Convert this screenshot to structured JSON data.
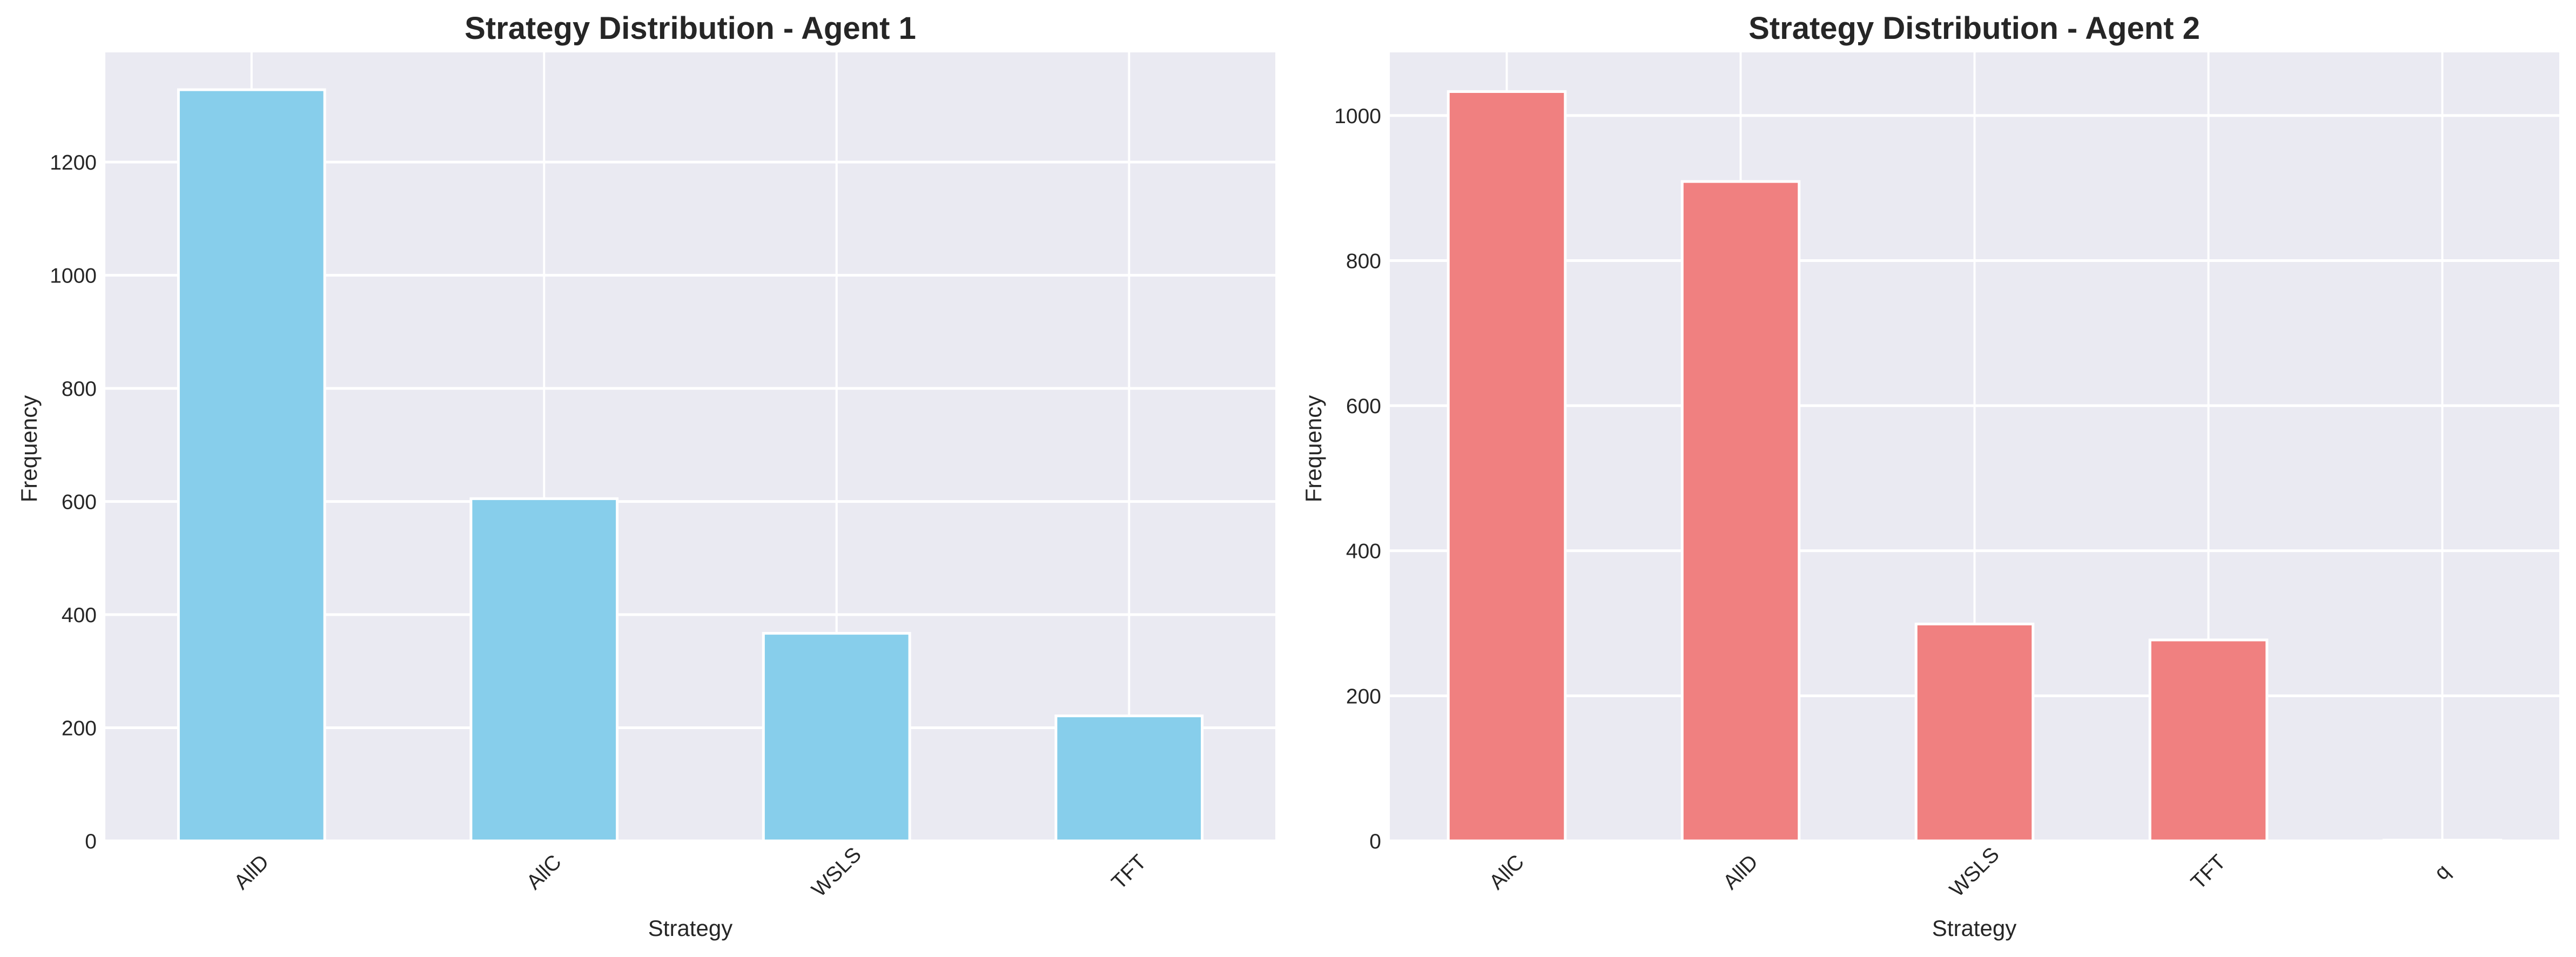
{
  "figure": {
    "background": "#ffffff",
    "axes_background": "#EAEAF2",
    "grid_color": "#ffffff",
    "text_color": "#262626"
  },
  "chart_data": [
    {
      "type": "bar",
      "title": "Strategy Distribution - Agent 1",
      "xlabel": "Strategy",
      "ylabel": "Frequency",
      "categories": [
        "AllD",
        "AllC",
        "WSLS",
        "TFT"
      ],
      "values": [
        1328,
        605,
        367,
        221
      ],
      "color": "#87CEEB",
      "yticks": [
        0,
        200,
        400,
        600,
        800,
        1000,
        1200
      ],
      "ylim": [
        0,
        1394
      ],
      "grid": true,
      "xtick_rotation": 45,
      "legend": null
    },
    {
      "type": "bar",
      "title": "Strategy Distribution - Agent 2",
      "xlabel": "Strategy",
      "ylabel": "Frequency",
      "categories": [
        "AllC",
        "AllD",
        "WSLS",
        "TFT",
        "q"
      ],
      "values": [
        1033,
        909,
        299,
        277,
        1
      ],
      "color": "#F08080",
      "yticks": [
        0,
        200,
        400,
        600,
        800,
        1000
      ],
      "ylim": [
        0,
        1087
      ],
      "grid": true,
      "xtick_rotation": 45,
      "legend": null
    }
  ]
}
